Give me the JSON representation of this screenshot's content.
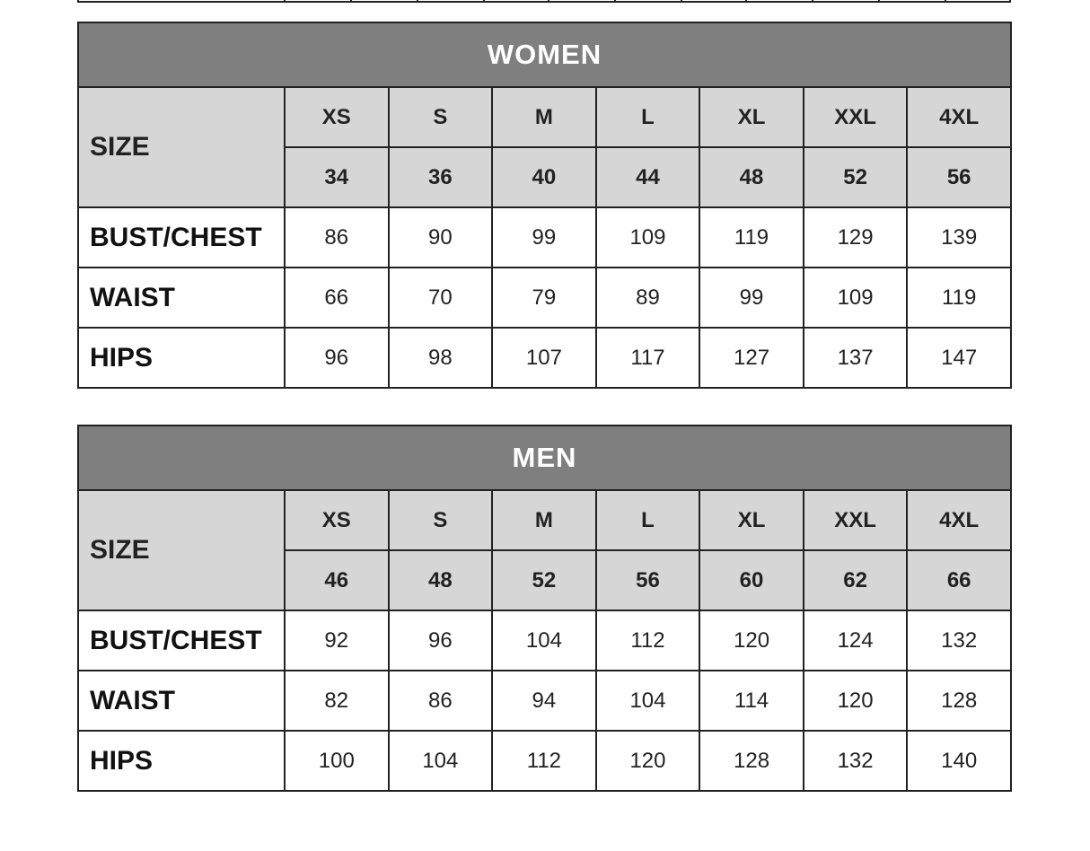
{
  "tables": [
    {
      "title": "WOMEN",
      "size_label": "SIZE",
      "sizes": [
        "XS",
        "S",
        "M",
        "L",
        "XL",
        "XXL",
        "4XL"
      ],
      "numeric_sizes": [
        "34",
        "36",
        "40",
        "44",
        "48",
        "52",
        "56"
      ],
      "rows": [
        {
          "label": "BUST/CHEST",
          "values": [
            "86",
            "90",
            "99",
            "109",
            "119",
            "129",
            "139"
          ]
        },
        {
          "label": "WAIST",
          "values": [
            "66",
            "70",
            "79",
            "89",
            "99",
            "109",
            "119"
          ]
        },
        {
          "label": "HIPS",
          "values": [
            "96",
            "98",
            "107",
            "117",
            "127",
            "137",
            "147"
          ]
        }
      ]
    },
    {
      "title": "MEN",
      "size_label": "SIZE",
      "sizes": [
        "XS",
        "S",
        "M",
        "L",
        "XL",
        "XXL",
        "4XL"
      ],
      "numeric_sizes": [
        "46",
        "48",
        "52",
        "56",
        "60",
        "62",
        "66"
      ],
      "rows": [
        {
          "label": "BUST/CHEST",
          "values": [
            "92",
            "96",
            "104",
            "112",
            "120",
            "124",
            "132"
          ]
        },
        {
          "label": "WAIST",
          "values": [
            "82",
            "86",
            "94",
            "104",
            "114",
            "120",
            "128"
          ]
        },
        {
          "label": "HIPS",
          "values": [
            "100",
            "104",
            "112",
            "120",
            "128",
            "132",
            "140"
          ]
        }
      ]
    }
  ]
}
